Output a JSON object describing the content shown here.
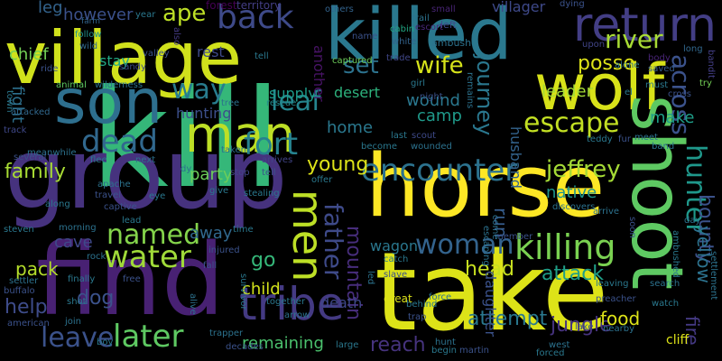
{
  "cloud": {
    "background": "#000000",
    "words": [
      {
        "text": "kill",
        "color": "#35b779"
      },
      {
        "text": "group",
        "color": "#46327e"
      },
      {
        "text": "take",
        "color": "#dde318"
      },
      {
        "text": "find",
        "color": "#482173"
      },
      {
        "text": "horse",
        "color": "#fde725"
      },
      {
        "text": "village",
        "color": "#d0e11c"
      },
      {
        "text": "killed",
        "color": "#2a788e"
      },
      {
        "text": "son",
        "color": "#2e6f8e"
      },
      {
        "text": "wolf",
        "color": "#d8e219"
      },
      {
        "text": "shoot",
        "color": "#5ec962"
      },
      {
        "text": "return",
        "color": "#433e85"
      },
      {
        "text": "man",
        "color": "#bddf26"
      },
      {
        "text": "tribe",
        "color": "#443a83"
      },
      {
        "text": "killing",
        "color": "#7ad151"
      },
      {
        "text": "encounter",
        "color": "#2c728e"
      },
      {
        "text": "water",
        "color": "#a0da39"
      },
      {
        "text": "later",
        "color": "#5ec962"
      },
      {
        "text": "named",
        "color": "#84d44b"
      },
      {
        "text": "men",
        "color": "#bddf26"
      },
      {
        "text": "leave",
        "color": "#3b528b"
      },
      {
        "text": "hunter",
        "color": "#1f988b"
      },
      {
        "text": "back",
        "color": "#3e4a89"
      },
      {
        "text": "dead",
        "color": "#31688e"
      },
      {
        "text": "fort",
        "color": "#26828e"
      },
      {
        "text": "escape",
        "color": "#c2df23"
      },
      {
        "text": "woman",
        "color": "#33638d"
      },
      {
        "text": "across",
        "color": "#3b528b"
      },
      {
        "text": "river",
        "color": "#a8db34"
      },
      {
        "text": "way",
        "color": "#287c8e"
      },
      {
        "text": "leaf",
        "color": "#25858e"
      },
      {
        "text": "father",
        "color": "#3e4a89"
      },
      {
        "text": "set",
        "color": "#2c728e"
      },
      {
        "text": "wife",
        "color": "#d5e21a"
      },
      {
        "text": "jeffrey",
        "color": "#a5db36"
      },
      {
        "text": "young",
        "color": "#dde318"
      },
      {
        "text": "family",
        "color": "#a8db34"
      },
      {
        "text": "bounty",
        "color": "#3b528b"
      },
      {
        "text": "journey",
        "color": "#2a778e"
      },
      {
        "text": "mountain",
        "color": "#472d7b"
      },
      {
        "text": "posse",
        "color": "#dde318"
      },
      {
        "text": "go",
        "color": "#35b779"
      },
      {
        "text": "child",
        "color": "#d2e21b"
      },
      {
        "text": "remaining",
        "color": "#4ac16d"
      },
      {
        "text": "reach",
        "color": "#46337e"
      },
      {
        "text": "attempt",
        "color": "#2a788e"
      },
      {
        "text": "head",
        "color": "#c8e020"
      },
      {
        "text": "help",
        "color": "#3e4c8a"
      },
      {
        "text": "dog",
        "color": "#3b528b"
      },
      {
        "text": "jungle",
        "color": "#46337e"
      },
      {
        "text": "food",
        "color": "#dde318"
      },
      {
        "text": "attack",
        "color": "#1f9f88"
      },
      {
        "text": "fire",
        "color": "#443983"
      },
      {
        "text": "yellow",
        "color": "#2c728e"
      },
      {
        "text": "run",
        "color": "#365d8d"
      },
      {
        "text": "pack",
        "color": "#b5de2b"
      },
      {
        "text": "cave",
        "color": "#3f4889"
      },
      {
        "text": "away",
        "color": "#31688e"
      },
      {
        "text": "party",
        "color": "#6ccd5a"
      },
      {
        "text": "native",
        "color": "#1f958b"
      },
      {
        "text": "make",
        "color": "#1f9e89"
      },
      {
        "text": "leader",
        "color": "#a5db36"
      },
      {
        "text": "home",
        "color": "#2a788e"
      },
      {
        "text": "camp",
        "color": "#1f9a8a"
      },
      {
        "text": "wound",
        "color": "#2a778e"
      },
      {
        "text": "desert",
        "color": "#2db27d"
      },
      {
        "text": "supply",
        "color": "#1e9b8a"
      },
      {
        "text": "another",
        "color": "#471365"
      },
      {
        "text": "hunting",
        "color": "#3c4f8a"
      },
      {
        "text": "rest",
        "color": "#3e4989"
      },
      {
        "text": "stay",
        "color": "#22a884"
      },
      {
        "text": "ape",
        "color": "#bddf26"
      },
      {
        "text": "however",
        "color": "#3b518b"
      },
      {
        "text": "leg",
        "color": "#33638d"
      },
      {
        "text": "chief",
        "color": "#73d056"
      },
      {
        "text": "fight",
        "color": "#2d708e"
      },
      {
        "text": "death",
        "color": "#3f4889"
      },
      {
        "text": "wagon",
        "color": "#2a778e"
      },
      {
        "text": "daughter",
        "color": "#3b528b"
      },
      {
        "text": "husband",
        "color": "#33638d"
      },
      {
        "text": "villager",
        "color": "#3e4989"
      },
      {
        "text": "forest",
        "color": "#440154"
      },
      {
        "text": "territory",
        "color": "#433e85"
      },
      {
        "text": "others",
        "color": "#33638d"
      },
      {
        "text": "dying",
        "color": "#3b528b"
      },
      {
        "text": "trail",
        "color": "#2c728e"
      },
      {
        "text": "small",
        "color": "#482475"
      },
      {
        "text": "cabin",
        "color": "#22a884"
      },
      {
        "text": "escort",
        "color": "#482878"
      },
      {
        "text": "left",
        "color": "#3e4a89"
      },
      {
        "text": "ambush",
        "color": "#2c728e"
      },
      {
        "text": "white",
        "color": "#33638d"
      },
      {
        "text": "name",
        "color": "#3b528b"
      },
      {
        "text": "captured",
        "color": "#6ccd5a"
      },
      {
        "text": "trade",
        "color": "#404688"
      },
      {
        "text": "tell",
        "color": "#2a788e"
      },
      {
        "text": "farm",
        "color": "#32658e"
      },
      {
        "text": "follow",
        "color": "#21918c"
      },
      {
        "text": "wild",
        "color": "#31688e"
      },
      {
        "text": "ride",
        "color": "#3b528b"
      },
      {
        "text": "sandy",
        "color": "#3e4a89"
      },
      {
        "text": "valley",
        "color": "#3b528b"
      },
      {
        "text": "year",
        "color": "#2a788e"
      },
      {
        "text": "also",
        "color": "#443a83"
      },
      {
        "text": "animal",
        "color": "#5ec962"
      },
      {
        "text": "wilderness",
        "color": "#2c728e"
      },
      {
        "text": "tree",
        "color": "#2c728e"
      },
      {
        "text": "rescue",
        "color": "#238a8d"
      },
      {
        "text": "girl",
        "color": "#2a788e"
      },
      {
        "text": "night",
        "color": "#3b528b"
      },
      {
        "text": "remains",
        "color": "#2c728e"
      },
      {
        "text": "upon",
        "color": "#414487"
      },
      {
        "text": "alone",
        "color": "#2c728e"
      },
      {
        "text": "body",
        "color": "#482475"
      },
      {
        "text": "saved",
        "color": "#365c8d"
      },
      {
        "text": "el",
        "color": "#2a788e"
      },
      {
        "text": "must",
        "color": "#2a788e"
      },
      {
        "text": "cross",
        "color": "#3b528b"
      },
      {
        "text": "long",
        "color": "#31688e"
      },
      {
        "text": "try",
        "color": "#73d056"
      },
      {
        "text": "bandit",
        "color": "#433e85"
      },
      {
        "text": "town",
        "color": "#2a788e"
      },
      {
        "text": "attacked",
        "color": "#31688e"
      },
      {
        "text": "track",
        "color": "#3f4889"
      },
      {
        "text": "meanwhile",
        "color": "#2c728e"
      },
      {
        "text": "several",
        "color": "#3b528b"
      },
      {
        "text": "flee",
        "color": "#2a788e"
      },
      {
        "text": "next",
        "color": "#2d708e"
      },
      {
        "text": "taken",
        "color": "#2c728e"
      },
      {
        "text": "stop",
        "color": "#404688"
      },
      {
        "text": "dy",
        "color": "#2c728e"
      },
      {
        "text": "tell",
        "color": "#3b528b"
      },
      {
        "text": "arrives",
        "color": "#414487"
      },
      {
        "text": "offer",
        "color": "#2a788e"
      },
      {
        "text": "last",
        "color": "#2a788e"
      },
      {
        "text": "scout",
        "color": "#3e4a89"
      },
      {
        "text": "wounded",
        "color": "#2c728e"
      },
      {
        "text": "become",
        "color": "#2a788e"
      },
      {
        "text": "fur",
        "color": "#3b528b"
      },
      {
        "text": "meet",
        "color": "#2c728e"
      },
      {
        "text": "band",
        "color": "#2c728e"
      },
      {
        "text": "teddy",
        "color": "#2a788e"
      },
      {
        "text": "apache",
        "color": "#2c728e"
      },
      {
        "text": "travel",
        "color": "#3b528b"
      },
      {
        "text": "eye",
        "color": "#2a788e"
      },
      {
        "text": "give",
        "color": "#2a788e"
      },
      {
        "text": "stealing",
        "color": "#2a788e"
      },
      {
        "text": "discovers",
        "color": "#2c728e"
      },
      {
        "text": "along",
        "color": "#2a788e"
      },
      {
        "text": "captive",
        "color": "#3b528b"
      },
      {
        "text": "lead",
        "color": "#2a788e"
      },
      {
        "text": "time",
        "color": "#2a788e"
      },
      {
        "text": "member",
        "color": "#3b528b"
      },
      {
        "text": "come",
        "color": "#2c728e"
      },
      {
        "text": "escaping",
        "color": "#2c728e"
      },
      {
        "text": "arrive",
        "color": "#2c728e"
      },
      {
        "text": "soon",
        "color": "#3b528b"
      },
      {
        "text": "day",
        "color": "#2c728e"
      },
      {
        "text": "ambushed",
        "color": "#2a788e"
      },
      {
        "text": "morning",
        "color": "#2c728e"
      },
      {
        "text": "injured",
        "color": "#3b528b"
      },
      {
        "text": "steven",
        "color": "#2a788e"
      },
      {
        "text": "rock",
        "color": "#2c728e"
      },
      {
        "text": "fall",
        "color": "#3b528b"
      },
      {
        "text": "survivor",
        "color": "#2a788e"
      },
      {
        "text": "catch",
        "color": "#2a788e"
      },
      {
        "text": "slave",
        "color": "#3b528b"
      },
      {
        "text": "led",
        "color": "#2c728e"
      },
      {
        "text": "great",
        "color": "#dde318"
      },
      {
        "text": "force",
        "color": "#2c728e"
      },
      {
        "text": "preacher",
        "color": "#3b528b"
      },
      {
        "text": "leaving",
        "color": "#2a788e"
      },
      {
        "text": "search",
        "color": "#2c728e"
      },
      {
        "text": "settler",
        "color": "#2c728e"
      },
      {
        "text": "buffalo",
        "color": "#3b528b"
      },
      {
        "text": "finally",
        "color": "#2a788e"
      },
      {
        "text": "free",
        "color": "#3b528b"
      },
      {
        "text": "alive",
        "color": "#2c728e"
      },
      {
        "text": "shot",
        "color": "#2a788e"
      },
      {
        "text": "join",
        "color": "#2c728e"
      },
      {
        "text": "american",
        "color": "#3b528b"
      },
      {
        "text": "together",
        "color": "#2a788e"
      },
      {
        "text": "arrow",
        "color": "#2c728e"
      },
      {
        "text": "behind",
        "color": "#2a788e"
      },
      {
        "text": "trap",
        "color": "#3b528b"
      },
      {
        "text": "watch",
        "color": "#2a788e"
      },
      {
        "text": "nearby",
        "color": "#2c728e"
      },
      {
        "text": "lake",
        "color": "#3b528b"
      },
      {
        "text": "cliff",
        "color": "#dde318"
      },
      {
        "text": "settlement",
        "color": "#2c728e"
      },
      {
        "text": "boy",
        "color": "#2a788e"
      },
      {
        "text": "trapper",
        "color": "#2c728e"
      },
      {
        "text": "decades",
        "color": "#3b528b"
      },
      {
        "text": "large",
        "color": "#2a788e"
      },
      {
        "text": "hunt",
        "color": "#2c728e"
      },
      {
        "text": "begin",
        "color": "#2a788e"
      },
      {
        "text": "martin",
        "color": "#3b528b"
      },
      {
        "text": "west",
        "color": "#2c728e"
      },
      {
        "text": "forced",
        "color": "#2a788e"
      }
    ]
  }
}
